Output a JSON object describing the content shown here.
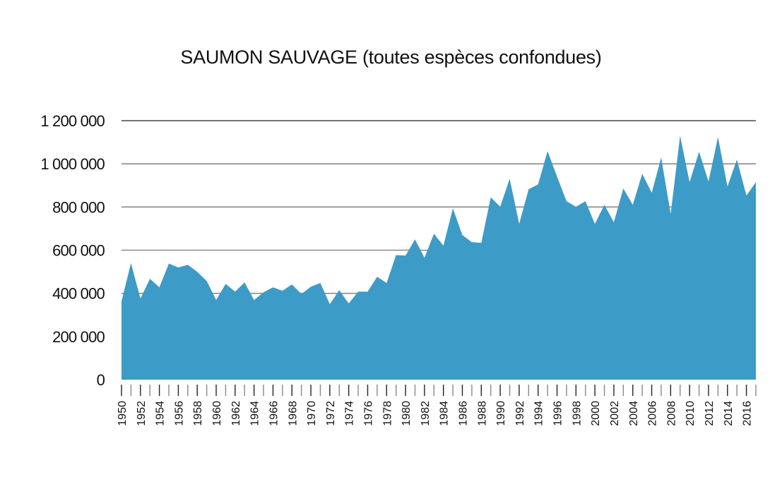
{
  "header": {
    "title": "SAUMON SAUVAGE (toutes espèces confondues)"
  },
  "colors": {
    "area": "#3d9bc8",
    "grid": "#8a8a8a",
    "top_grid": "#222222",
    "tick": "#555555",
    "text": "#111111"
  },
  "chart_data": {
    "type": "area",
    "title": "SAUMON SAUVAGE (toutes espèces confondues)",
    "xlabel": "",
    "ylabel": "",
    "ylim": [
      0,
      1200000
    ],
    "grid": true,
    "legend": null,
    "y_ticks": [
      0,
      200000,
      400000,
      600000,
      800000,
      1000000,
      1200000
    ],
    "y_tick_labels": [
      "0",
      "200 000",
      "400 000",
      "600 000",
      "800 000",
      "1 000 000",
      "1 200 000"
    ],
    "x_tick_labels": [
      "1950",
      "1952",
      "1954",
      "1956",
      "1958",
      "1960",
      "1962",
      "1964",
      "1966",
      "1968",
      "1970",
      "1972",
      "1974",
      "1976",
      "1978",
      "1980",
      "1982",
      "1984",
      "1986",
      "1988",
      "1990",
      "1992",
      "1994",
      "1996",
      "1998",
      "2000",
      "2002",
      "2004",
      "2006",
      "2008",
      "2010",
      "2012",
      "2014",
      "2016"
    ],
    "x": [
      1950,
      1951,
      1952,
      1953,
      1954,
      1955,
      1956,
      1957,
      1958,
      1959,
      1960,
      1961,
      1962,
      1963,
      1964,
      1965,
      1966,
      1967,
      1968,
      1969,
      1970,
      1971,
      1972,
      1973,
      1974,
      1975,
      1976,
      1977,
      1978,
      1979,
      1980,
      1981,
      1982,
      1983,
      1984,
      1985,
      1986,
      1987,
      1988,
      1989,
      1990,
      1991,
      1992,
      1993,
      1994,
      1995,
      1996,
      1997,
      1998,
      1999,
      2000,
      2001,
      2002,
      2003,
      2004,
      2005,
      2006,
      2007,
      2008,
      2009,
      2010,
      2011,
      2012,
      2013,
      2014,
      2015,
      2016,
      2017
    ],
    "series": [
      {
        "name": "Saumon sauvage",
        "values": [
          363000,
          540000,
          376000,
          467000,
          428000,
          538000,
          520000,
          532000,
          500000,
          457000,
          369000,
          444000,
          408000,
          451000,
          369000,
          405000,
          428000,
          412000,
          441000,
          397000,
          431000,
          448000,
          350000,
          415000,
          353000,
          408000,
          408000,
          477000,
          448000,
          577000,
          575000,
          650000,
          565000,
          676000,
          621000,
          794000,
          670000,
          637000,
          634000,
          845000,
          801000,
          931000,
          722000,
          882000,
          905000,
          1059000,
          941000,
          827000,
          801000,
          827000,
          722000,
          810000,
          729000,
          886000,
          810000,
          954000,
          866000,
          1029000,
          768000,
          1130000,
          915000,
          1056000,
          918000,
          1124000,
          895000,
          1020000,
          853000,
          915000
        ]
      }
    ]
  }
}
